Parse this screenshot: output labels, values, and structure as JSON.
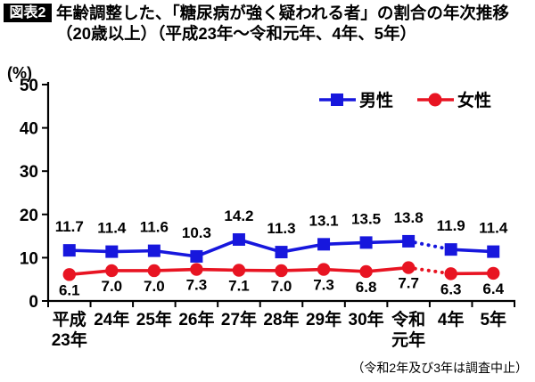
{
  "figure": {
    "badge": "図表2",
    "title_line1": "年齢調整した、「糖尿病が強く疑われる者」の割合の年次推移",
    "title_line2": "（20歳以上）（平成23年～令和元年、4年、5年）",
    "footnote": "（令和2年及び3年は調査中止）"
  },
  "chart_data": {
    "type": "line",
    "title": "年齢調整した、「糖尿病が強く疑われる者」の割合の年次推移（20歳以上）（平成23年～令和元年、4年、5年）",
    "unit_label": "(%)",
    "ylabel": "%",
    "ylim": [
      0,
      50
    ],
    "yticks": [
      0,
      10,
      20,
      30,
      40,
      50
    ],
    "grid": false,
    "legend_position": "top-right-inside",
    "categories": [
      "平成23年",
      "24年",
      "25年",
      "26年",
      "27年",
      "28年",
      "29年",
      "30年",
      "令和元年",
      "4年",
      "5年"
    ],
    "category_label_lines": [
      [
        "平成",
        "23年"
      ],
      [
        "24年"
      ],
      [
        "25年"
      ],
      [
        "26年"
      ],
      [
        "27年"
      ],
      [
        "28年"
      ],
      [
        "29年"
      ],
      [
        "30年"
      ],
      [
        "令和",
        "元年"
      ],
      [
        "4年"
      ],
      [
        "5年"
      ]
    ],
    "series": [
      {
        "name": "男性",
        "color": "#1717dd",
        "marker": "square",
        "label_position": "above",
        "values": [
          11.7,
          11.4,
          11.6,
          10.3,
          14.2,
          11.3,
          13.1,
          13.5,
          13.8,
          11.9,
          11.4
        ]
      },
      {
        "name": "女性",
        "color": "#e81422",
        "marker": "circle",
        "label_position": "below",
        "values": [
          6.1,
          7.0,
          7.0,
          7.3,
          7.1,
          7.0,
          7.3,
          6.8,
          7.7,
          6.3,
          6.4
        ]
      }
    ],
    "dotted_segment_between": [
      "令和元年",
      "4年"
    ],
    "dotted_segment_index": 8,
    "note": "（令和2年及び3年は調査中止）"
  }
}
